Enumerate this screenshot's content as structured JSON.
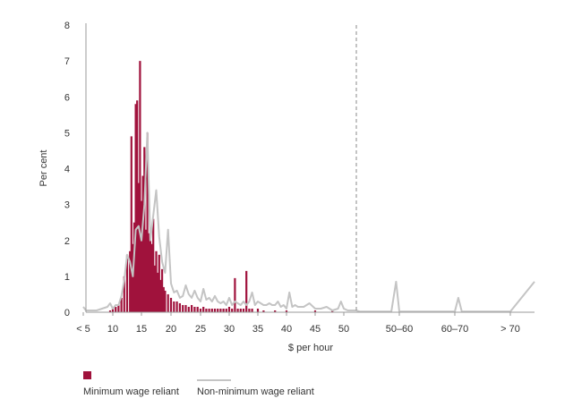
{
  "chart_data": {
    "type": "bar",
    "ylabel": "Per cent",
    "xlabel": "$ per hour",
    "ylim": [
      0,
      8
    ],
    "yticks": [
      "0",
      "1",
      "2",
      "3",
      "4",
      "5",
      "6",
      "7",
      "8"
    ],
    "xticks": [
      {
        "label": "< 5",
        "x": 4.5
      },
      {
        "label": "10",
        "x": 10
      },
      {
        "label": "15",
        "x": 15
      },
      {
        "label": "20",
        "x": 20
      },
      {
        "label": "25",
        "x": 25
      },
      {
        "label": "30",
        "x": 30
      },
      {
        "label": "35",
        "x": 35
      },
      {
        "label": "40",
        "x": 40
      },
      {
        "label": "45",
        "x": 45
      },
      {
        "label": "50",
        "x": 50
      },
      {
        "label": "50–60",
        "x": 57
      },
      {
        "label": "60–70",
        "x": 66
      },
      {
        "label": "> 70",
        "x": 74
      }
    ],
    "break_x": 51.6,
    "series": [
      {
        "name": "Minimum wage reliant",
        "kind": "bar",
        "color": "#a0123c",
        "x": [
          9.5,
          10,
          10.5,
          11,
          11.5,
          12,
          12.5,
          13,
          13.25,
          13.5,
          13.75,
          14,
          14.25,
          14.5,
          14.75,
          15,
          15.25,
          15.5,
          15.75,
          16,
          16.25,
          16.5,
          16.75,
          17,
          17.25,
          17.5,
          17.75,
          18,
          18.25,
          18.5,
          18.75,
          19,
          19.5,
          20,
          20.5,
          21,
          21.5,
          22,
          22.5,
          23,
          23.5,
          24,
          24.5,
          25,
          25.5,
          26,
          26.5,
          27,
          27.5,
          28,
          28.5,
          29,
          29.5,
          30,
          30.5,
          31,
          31.5,
          32,
          32.5,
          33,
          33.5,
          34,
          35,
          36,
          38,
          40,
          45,
          48
        ],
        "values": [
          0.05,
          0.1,
          0.15,
          0.2,
          0.4,
          1.0,
          1.6,
          1.7,
          4.9,
          1.9,
          2.5,
          5.8,
          5.9,
          3.6,
          7.0,
          3.1,
          3.8,
          4.6,
          2.3,
          5.0,
          2.2,
          2.0,
          1.9,
          2.6,
          1.3,
          1.7,
          1.1,
          1.6,
          0.9,
          1.2,
          0.7,
          0.6,
          0.5,
          0.4,
          0.3,
          0.3,
          0.25,
          0.2,
          0.2,
          0.15,
          0.2,
          0.15,
          0.15,
          0.1,
          0.15,
          0.1,
          0.1,
          0.1,
          0.1,
          0.1,
          0.1,
          0.1,
          0.1,
          0.15,
          0.1,
          0.95,
          0.1,
          0.1,
          0.1,
          1.15,
          0.1,
          0.1,
          0.1,
          0.05,
          0.05,
          0.05,
          0.05,
          0.05
        ]
      },
      {
        "name": "Non-minimum wage reliant",
        "kind": "line",
        "color": "#c4c4c4",
        "x": [
          4.5,
          5,
          6,
          7,
          8,
          9,
          9.5,
          10,
          10.5,
          11,
          11.5,
          12,
          12.5,
          13,
          13.5,
          14,
          14.5,
          15,
          15.5,
          16,
          16.5,
          17,
          17.5,
          18,
          18.5,
          19,
          19.5,
          20,
          20.5,
          21,
          21.5,
          22,
          22.5,
          23,
          23.5,
          24,
          24.5,
          25,
          25.5,
          26,
          26.5,
          27,
          27.5,
          28,
          28.5,
          29,
          29.5,
          30,
          30.5,
          31,
          31.5,
          32,
          32.5,
          33,
          33.5,
          34,
          34.5,
          35,
          35.5,
          36,
          36.5,
          37,
          37.5,
          38,
          38.5,
          39,
          39.5,
          40,
          40.5,
          41,
          41.5,
          42,
          43,
          44,
          45,
          46,
          47,
          48,
          49,
          49.5,
          50,
          50.5,
          51,
          51.6,
          52,
          54,
          56,
          56.6,
          57,
          57.5,
          58,
          60,
          62,
          64,
          66,
          66.5,
          67,
          67.5,
          68,
          70,
          72,
          74,
          74.4
        ],
        "values": [
          0.15,
          0.05,
          0.05,
          0.05,
          0.1,
          0.15,
          0.25,
          0.1,
          0.2,
          0.2,
          0.45,
          0.9,
          1.6,
          1.4,
          1.0,
          2.3,
          2.4,
          2.0,
          3.0,
          5.0,
          2.0,
          2.7,
          3.4,
          2.1,
          1.4,
          1.1,
          2.3,
          0.8,
          0.55,
          0.6,
          0.4,
          0.45,
          0.75,
          0.5,
          0.4,
          0.6,
          0.4,
          0.3,
          0.65,
          0.35,
          0.4,
          0.3,
          0.45,
          0.3,
          0.25,
          0.3,
          0.2,
          0.4,
          0.2,
          0.3,
          0.25,
          0.2,
          0.3,
          0.2,
          0.3,
          0.55,
          0.2,
          0.3,
          0.25,
          0.2,
          0.2,
          0.25,
          0.2,
          0.2,
          0.3,
          0.15,
          0.2,
          0.1,
          0.55,
          0.15,
          0.2,
          0.15,
          0.15,
          0.25,
          0.1,
          0.1,
          0.15,
          0.05,
          0.1,
          0.3,
          0.1,
          0.05,
          0.05,
          0.05,
          0.02,
          0.02,
          0.02,
          0.85,
          0.02,
          0.02,
          0.02,
          0.02,
          0.02,
          0.02,
          0.02,
          0.4,
          0.02,
          0.02,
          0.02,
          0.02,
          0.02,
          0.02,
          0.85
        ]
      }
    ]
  },
  "legend": {
    "bar_label": "Minimum wage reliant",
    "line_label": "Non-minimum wage reliant"
  }
}
